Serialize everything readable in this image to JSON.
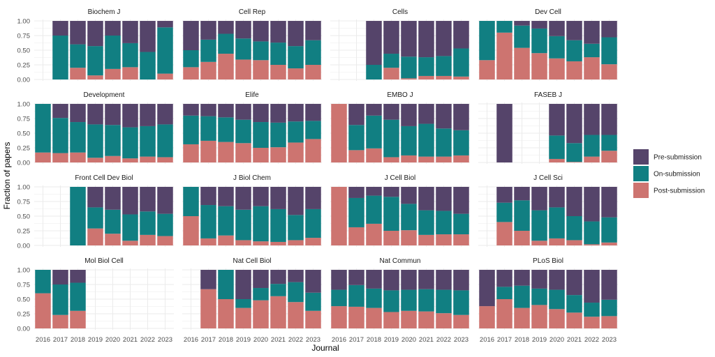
{
  "chart_data": {
    "type": "bar",
    "stacked": true,
    "xlabel": "Journal",
    "ylabel": "Fraction of papers",
    "ylim": [
      0,
      1
    ],
    "yticks": [
      "0.00",
      "0.25",
      "0.50",
      "0.75",
      "1.00"
    ],
    "categories": [
      "2016",
      "2017",
      "2018",
      "2019",
      "2020",
      "2021",
      "2022",
      "2023"
    ],
    "grid": true,
    "legend_position": "right",
    "legend": [
      {
        "key": "pre",
        "label": "Pre-submission",
        "color": "#55446a"
      },
      {
        "key": "on",
        "label": "On-submission",
        "color": "#117f82"
      },
      {
        "key": "post",
        "label": "Post-submission",
        "color": "#cd7470"
      }
    ],
    "facets": [
      {
        "title": "Biochem J",
        "post": [
          null,
          0,
          0.2,
          0.07,
          0.18,
          0.21,
          0,
          0.1
        ],
        "on": [
          null,
          0.75,
          0.4,
          0.5,
          0.57,
          0.41,
          0.47,
          0.79
        ]
      },
      {
        "title": "Cell Rep",
        "post": [
          0.21,
          0.3,
          0.44,
          0.34,
          0.33,
          0.25,
          0.19,
          0.25
        ],
        "on": [
          0.29,
          0.38,
          0.34,
          0.36,
          0.32,
          0.38,
          0.38,
          0.42
        ]
      },
      {
        "title": "Cells",
        "post": [
          null,
          null,
          0,
          0.2,
          0.02,
          0.06,
          0.06,
          0.05
        ],
        "on": [
          null,
          null,
          0.25,
          0.24,
          0.37,
          0.32,
          0.34,
          0.48
        ]
      },
      {
        "title": "Dev Cell",
        "post": [
          0.33,
          0.8,
          0.54,
          0.45,
          0.36,
          0.31,
          0.38,
          0.26
        ],
        "on": [
          0.67,
          0.2,
          0.38,
          0.42,
          0.38,
          0.36,
          0.23,
          0.46
        ]
      },
      {
        "title": "Development",
        "post": [
          0.17,
          0.16,
          0.17,
          0.08,
          0.11,
          0.07,
          0.1,
          0.09
        ],
        "on": [
          0.83,
          0.6,
          0.52,
          0.57,
          0.53,
          0.53,
          0.52,
          0.56
        ]
      },
      {
        "title": "Elife",
        "post": [
          0.31,
          0.37,
          0.35,
          0.33,
          0.25,
          0.26,
          0.34,
          0.4
        ],
        "on": [
          0.49,
          0.42,
          0.42,
          0.4,
          0.44,
          0.42,
          0.36,
          0.31
        ]
      },
      {
        "title": "EMBO J",
        "post": [
          1.0,
          0.21,
          0.24,
          0.09,
          0.12,
          0.1,
          0.1,
          0.12
        ],
        "on": [
          0,
          0.43,
          0.56,
          0.64,
          0.5,
          0.56,
          0.48,
          0.43
        ]
      },
      {
        "title": "FASEB J",
        "post": [
          null,
          0,
          null,
          null,
          0.06,
          0.01,
          0.1,
          0.2
        ],
        "on": [
          null,
          0,
          null,
          null,
          0.4,
          0.32,
          0.37,
          0.27
        ]
      },
      {
        "title": "Front Cell Dev Biol",
        "post": [
          null,
          null,
          0,
          0.29,
          0.2,
          0.08,
          0.18,
          0.16
        ],
        "on": [
          null,
          null,
          1.0,
          0.36,
          0.41,
          0.45,
          0.4,
          0.38
        ]
      },
      {
        "title": "J Biol Chem",
        "post": [
          0.5,
          0.12,
          0.17,
          0.09,
          0.07,
          0.06,
          0.09,
          0.13
        ],
        "on": [
          0.5,
          0.57,
          0.5,
          0.52,
          0.6,
          0.56,
          0.43,
          0.49
        ]
      },
      {
        "title": "J Cell Biol",
        "post": [
          1.0,
          0.31,
          0.37,
          0.25,
          0.26,
          0.18,
          0.19,
          0.19
        ],
        "on": [
          0,
          0.5,
          0.48,
          0.58,
          0.45,
          0.42,
          0.4,
          0.35
        ]
      },
      {
        "title": "J Cell Sci",
        "post": [
          null,
          0.4,
          0.25,
          0.08,
          0.12,
          0.09,
          0.02,
          0.05
        ],
        "on": [
          null,
          0.33,
          0.52,
          0.52,
          0.53,
          0.41,
          0.39,
          0.43
        ]
      },
      {
        "title": "Mol Biol Cell",
        "post": [
          0.6,
          0.23,
          0.3,
          null,
          null,
          null,
          null,
          null
        ],
        "on": [
          0.4,
          0.52,
          0.48,
          null,
          null,
          null,
          null,
          null
        ]
      },
      {
        "title": "Nat Cell Biol",
        "post": [
          null,
          0.67,
          0.5,
          0.35,
          0.48,
          0.55,
          0.45,
          0.3
        ],
        "on": [
          null,
          0,
          0.5,
          0.15,
          0.21,
          0.21,
          0.34,
          0.31
        ]
      },
      {
        "title": "Nat Commun",
        "post": [
          0.38,
          0.37,
          0.35,
          0.28,
          0.3,
          0.29,
          0.26,
          0.23
        ],
        "on": [
          0.28,
          0.37,
          0.33,
          0.37,
          0.36,
          0.38,
          0.4,
          0.42
        ]
      },
      {
        "title": "PLoS Biol",
        "post": [
          0.38,
          0.5,
          0.35,
          0.4,
          0.33,
          0.27,
          0.2,
          0.21
        ],
        "on": [
          0,
          0.21,
          0.38,
          0.28,
          0.33,
          0.3,
          0.24,
          0.28
        ]
      }
    ]
  }
}
